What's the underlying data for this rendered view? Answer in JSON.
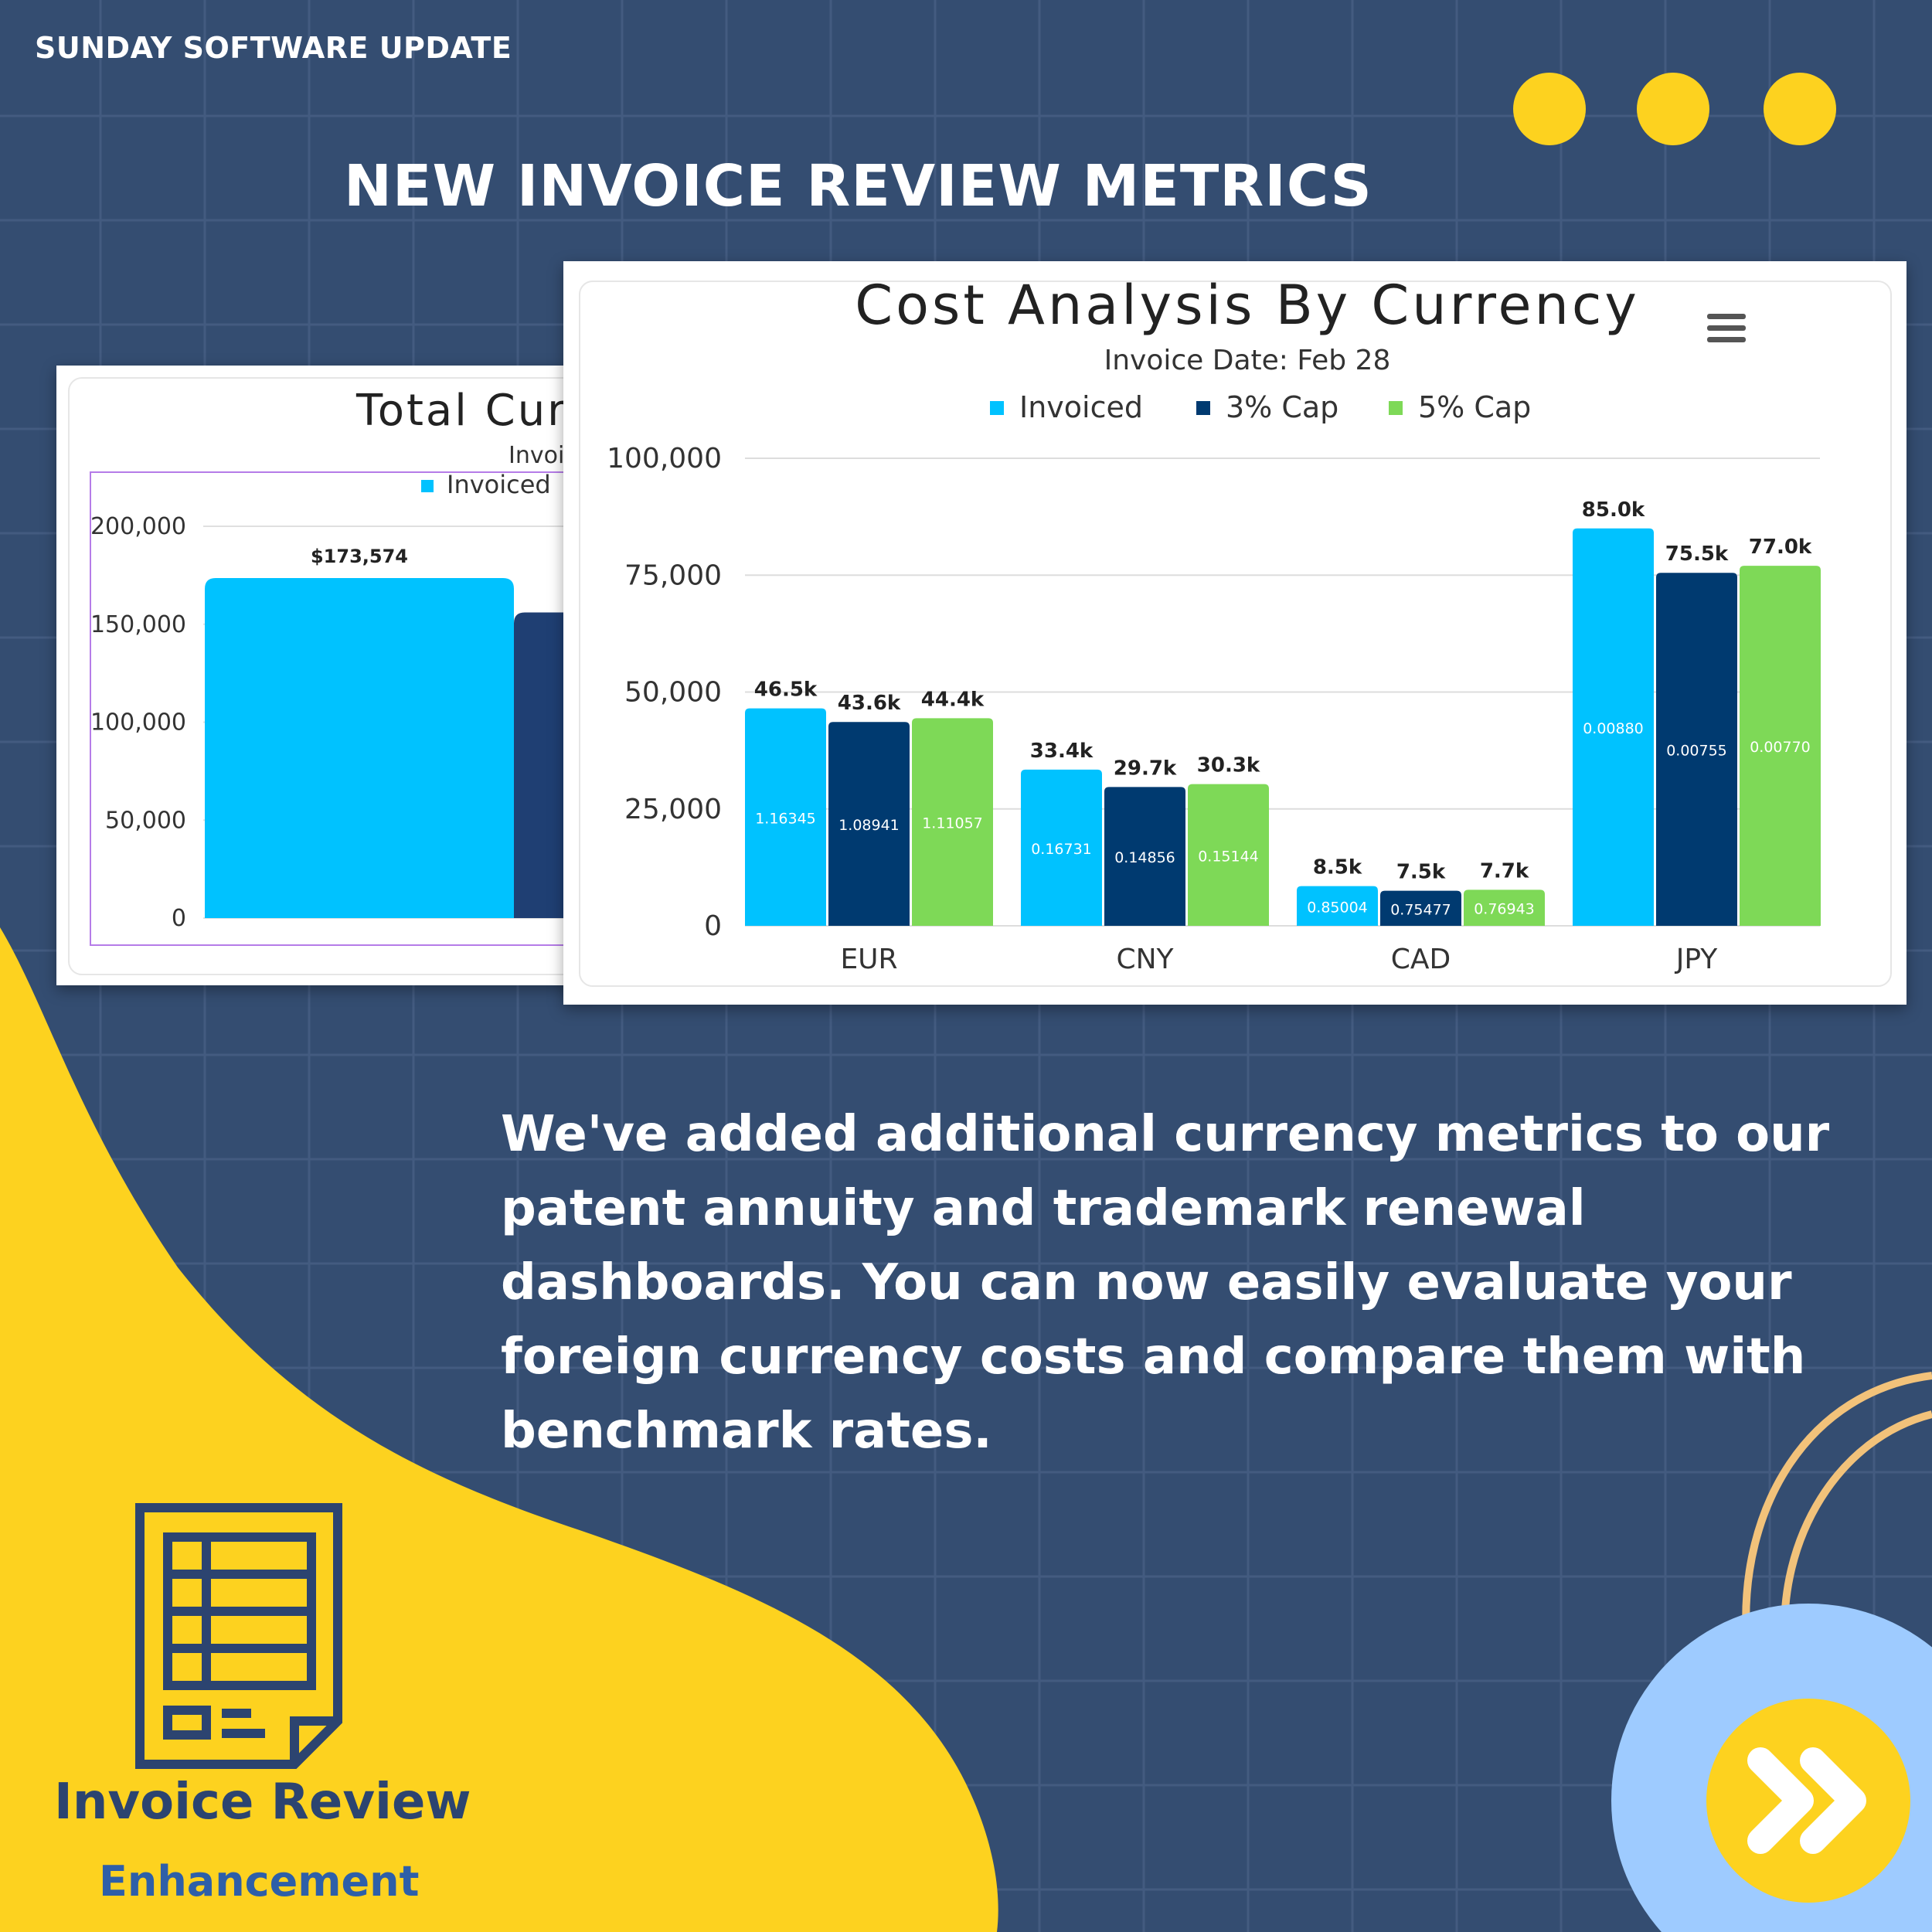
{
  "kicker": "SUNDAY SOFTWARE UPDATE",
  "headline": "NEW INVOICE REVIEW METRICS",
  "body_text": "We've added additional currency metrics to our patent annuity and trademark renewal dashboards. You can now easily evaluate your foreign currency costs and compare them with benchmark rates.",
  "badge": {
    "title": "Invoice Review",
    "subtitle": "Enhancement",
    "icon": "invoice-document-icon"
  },
  "next_button_icon": "double-chevron-right-icon",
  "colors": {
    "background": "#344d71",
    "yellow": "#fdd21f",
    "invoiced": "#00c2ff",
    "cap3": "#003a70",
    "cap5": "#7ed957",
    "light_blue": "#9ecbff"
  },
  "chart_data": [
    {
      "type": "bar",
      "title": "Total Cur",
      "subtitle": "Invoi",
      "legend": [
        "Invoiced"
      ],
      "y_ticks": [
        "0",
        "50,000",
        "100,000",
        "150,000",
        "200,000"
      ],
      "ylim": [
        0,
        200000
      ],
      "series": [
        {
          "name": "Invoiced",
          "values": [
            173574
          ],
          "labels": [
            "$173,574"
          ]
        },
        {
          "name": "",
          "values": [
            156000
          ]
        }
      ]
    },
    {
      "type": "bar",
      "title": "Cost Analysis By Currency",
      "subtitle": "Invoice Date: Feb 28",
      "legend_position": "top",
      "categories": [
        "EUR",
        "CNY",
        "CAD",
        "JPY"
      ],
      "y_ticks": [
        "0",
        "25,000",
        "50,000",
        "75,000",
        "100,000"
      ],
      "ylim": [
        0,
        100000
      ],
      "series": [
        {
          "name": "Invoiced",
          "values": [
            46500,
            33400,
            8500,
            85000
          ],
          "labels": [
            "46.5k",
            "33.4k",
            "8.5k",
            "85.0k"
          ],
          "rates": [
            "1.16345",
            "0.16731",
            "0.85004",
            "0.00880"
          ]
        },
        {
          "name": "3% Cap",
          "values": [
            43600,
            29700,
            7500,
            75500
          ],
          "labels": [
            "43.6k",
            "29.7k",
            "7.5k",
            "75.5k"
          ],
          "rates": [
            "1.08941",
            "0.14856",
            "0.75477",
            "0.00755"
          ]
        },
        {
          "name": "5% Cap",
          "values": [
            44400,
            30300,
            7700,
            77000
          ],
          "labels": [
            "44.4k",
            "30.3k",
            "7.7k",
            "77.0k"
          ],
          "rates": [
            "1.11057",
            "0.15144",
            "0.76943",
            "0.00770"
          ]
        }
      ]
    }
  ]
}
